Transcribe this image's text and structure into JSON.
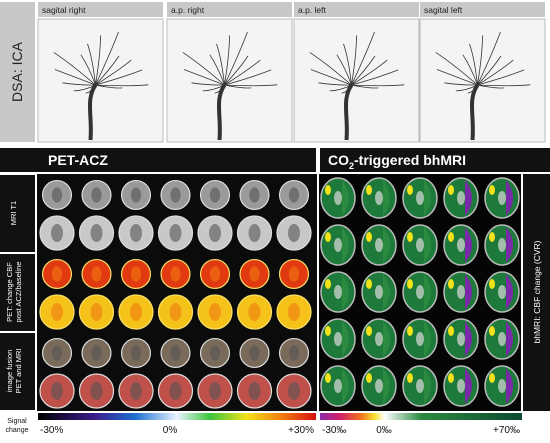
{
  "dsa": {
    "label": "DSA: ICA",
    "views": [
      "sagital right",
      "a.p. right",
      "a.p. left",
      "sagital left"
    ]
  },
  "pet": {
    "title": "PET-ACZ",
    "rows": [
      [
        "MRI T1"
      ],
      [
        "PET: change CBF",
        "post ACZ/baseline"
      ],
      [
        "image fusion",
        "PET and MRI"
      ]
    ],
    "scale": [
      "-30%",
      "0%",
      "+30%"
    ]
  },
  "bhmri": {
    "title": [
      "CO",
      "2",
      "-triggered bhMRI"
    ],
    "side_label": "bhMRI: CBF change (CVR)",
    "scale": [
      "-30‰",
      "0‰",
      "+70‰"
    ]
  },
  "signal": [
    "Signal",
    "change"
  ]
}
